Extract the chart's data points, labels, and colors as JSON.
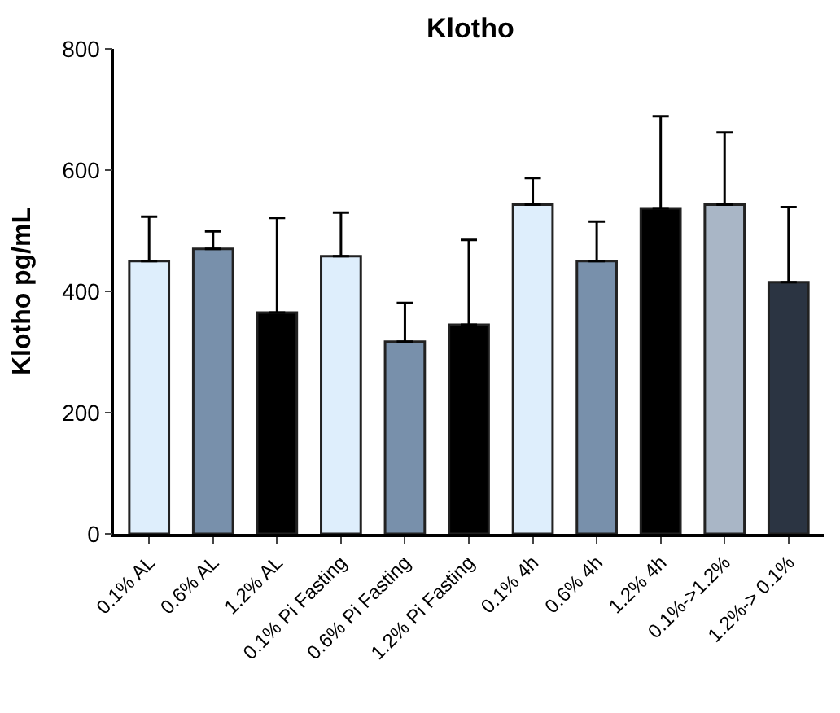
{
  "chart_data": {
    "type": "bar",
    "title": "Klotho",
    "ylabel": "Klotho pg/mL",
    "categories": [
      "0.1% AL",
      "0.6% AL",
      "1.2% AL",
      "0.1% Pi Fasting",
      "0.6% Pi Fasting",
      "1.2% Pi Fasting",
      "0.1% 4h",
      "0.6% 4h",
      "1.2% 4h",
      "0.1%->1.2%",
      "1.2%-> 0.1%"
    ],
    "values": [
      450,
      470,
      365,
      458,
      317,
      345,
      543,
      450,
      537,
      543,
      415
    ],
    "errors": [
      [
        450,
        523
      ],
      [
        470,
        499
      ],
      [
        365,
        521
      ],
      [
        458,
        530
      ],
      [
        317,
        381
      ],
      [
        345,
        485
      ],
      [
        543,
        587
      ],
      [
        450,
        515
      ],
      [
        537,
        689
      ],
      [
        543,
        662
      ],
      [
        415,
        539
      ]
    ],
    "colors": [
      "#deeefc",
      "#7890ab",
      "#000000",
      "#deeefc",
      "#7890ab",
      "#000000",
      "#deeefc",
      "#7890ab",
      "#000000",
      "#a9b6c6",
      "#2b3442"
    ],
    "ylim": [
      0,
      800
    ],
    "yticks": [
      0,
      200,
      400,
      600,
      800
    ]
  }
}
